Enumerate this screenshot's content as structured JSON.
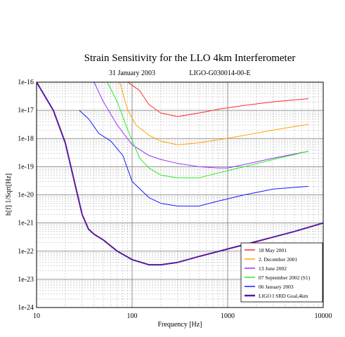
{
  "chart_data": {
    "type": "line",
    "title": "Strain Sensitivity for the LLO 4km Interferometer",
    "subtitle_date": "31 January 2003",
    "subtitle_doc": "LIGO-G030014-00-E",
    "xlabel": "Frequency [Hz]",
    "ylabel": "h[f]  1/Sqrt[Hz]",
    "x_scale": "log",
    "y_scale": "log",
    "xlim": [
      10,
      10000
    ],
    "ylim": [
      1e-24,
      1e-16
    ],
    "x_ticks": [
      {
        "value": 10,
        "label": "10"
      },
      {
        "value": 100,
        "label": "100"
      },
      {
        "value": 1000,
        "label": "1000"
      },
      {
        "value": 10000,
        "label": "10000"
      }
    ],
    "y_ticks": [
      {
        "value": 1e-16,
        "label": "1e-16"
      },
      {
        "value": 1e-17,
        "label": "1e-17"
      },
      {
        "value": 1e-18,
        "label": "1e-18"
      },
      {
        "value": 1e-19,
        "label": "1e-19"
      },
      {
        "value": 1e-20,
        "label": "1e-20"
      },
      {
        "value": 1e-21,
        "label": "1e-21"
      },
      {
        "value": 1e-22,
        "label": "1e-22"
      },
      {
        "value": 1e-23,
        "label": "1e-23"
      },
      {
        "value": 1e-24,
        "label": "1e-24"
      }
    ],
    "grid": true,
    "legend_position": "bottom-right",
    "series": [
      {
        "name": "18 May 2001",
        "color": "#ff2a2a",
        "width": 1,
        "x": [
          55,
          70,
          90,
          120,
          150,
          200,
          300,
          500,
          800,
          1500,
          3000,
          7000
        ],
        "y": [
          1e-16,
          2e-16,
          1e-16,
          5e-17,
          1.6e-17,
          8e-18,
          6e-18,
          8e-18,
          1.1e-17,
          1.5e-17,
          2e-17,
          2.6e-17
        ]
      },
      {
        "name": "2. December 2001",
        "color": "#ffa500",
        "width": 1,
        "x": [
          55,
          70,
          90,
          110,
          150,
          200,
          300,
          500,
          800,
          1500,
          3000,
          7000
        ],
        "y": [
          1e-16,
          2e-16,
          1e-17,
          3e-18,
          1.3e-18,
          8e-19,
          6e-19,
          7e-19,
          9e-19,
          1.3e-18,
          2e-18,
          3.2e-18
        ]
      },
      {
        "name": "13 June 2002",
        "color": "#9b30ff",
        "width": 1,
        "x": [
          40,
          50,
          70,
          100,
          150,
          200,
          300,
          500,
          800,
          1000,
          1500,
          3000,
          7000
        ],
        "y": [
          1e-16,
          2e-17,
          3e-18,
          6e-19,
          2.5e-19,
          1.8e-19,
          1.3e-19,
          1e-19,
          9e-20,
          9e-20,
          1.2e-19,
          2e-19,
          3.5e-19
        ]
      },
      {
        "name": "07 September 2002 (S1)",
        "color": "#22ee22",
        "width": 1,
        "x": [
          55,
          70,
          90,
          120,
          150,
          200,
          300,
          500,
          800,
          1500,
          3000,
          7000
        ],
        "y": [
          1e-16,
          2e-17,
          2e-18,
          2e-19,
          9e-20,
          5e-20,
          4e-20,
          4e-20,
          6e-20,
          1e-19,
          1.8e-19,
          3.5e-19
        ]
      },
      {
        "name": "06 January 2003",
        "color": "#1a1aff",
        "width": 1,
        "x": [
          28,
          35,
          45,
          60,
          80,
          100,
          150,
          200,
          300,
          500,
          800,
          1500,
          3000,
          7000
        ],
        "y": [
          1e-17,
          5e-18,
          1.5e-18,
          8e-19,
          2.5e-19,
          3e-20,
          8e-21,
          5e-21,
          4e-21,
          4e-21,
          6e-21,
          1e-20,
          1.6e-20,
          2e-20
        ]
      },
      {
        "name": "LIGO I SRD Goal,4km",
        "color": "#5a1a9a",
        "width": 2,
        "x": [
          10,
          15,
          20,
          30,
          35,
          40,
          50,
          70,
          100,
          150,
          200,
          300,
          500,
          1000,
          2000,
          5000,
          10000
        ],
        "y": [
          1e-16,
          1e-17,
          7e-19,
          2e-21,
          6e-22,
          4e-22,
          2.5e-22,
          1e-22,
          5e-23,
          3.3e-23,
          3.3e-23,
          4e-23,
          6.5e-23,
          1.2e-22,
          2.2e-22,
          5e-22,
          1e-21
        ]
      }
    ]
  }
}
